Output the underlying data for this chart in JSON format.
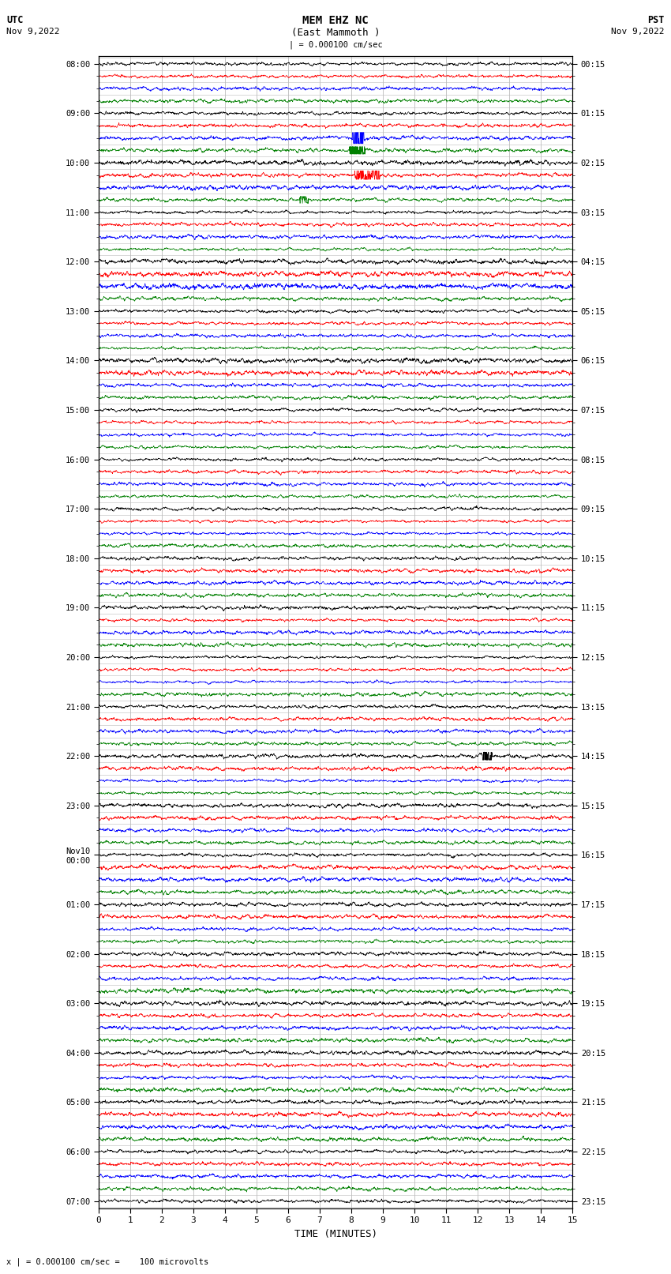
{
  "title_line1": "MEM EHZ NC",
  "title_line2": "(East Mammoth )",
  "scale_label": "| = 0.000100 cm/sec",
  "bottom_label": "x | = 0.000100 cm/sec =    100 microvolts",
  "xlabel": "TIME (MINUTES)",
  "utc_times": [
    "08:00",
    "",
    "",
    "",
    "09:00",
    "",
    "",
    "",
    "10:00",
    "",
    "",
    "",
    "11:00",
    "",
    "",
    "",
    "12:00",
    "",
    "",
    "",
    "13:00",
    "",
    "",
    "",
    "14:00",
    "",
    "",
    "",
    "15:00",
    "",
    "",
    "",
    "16:00",
    "",
    "",
    "",
    "17:00",
    "",
    "",
    "",
    "18:00",
    "",
    "",
    "",
    "19:00",
    "",
    "",
    "",
    "20:00",
    "",
    "",
    "",
    "21:00",
    "",
    "",
    "",
    "22:00",
    "",
    "",
    "",
    "23:00",
    "",
    "",
    "",
    "Nov10\n00:00",
    "",
    "",
    "",
    "01:00",
    "",
    "",
    "",
    "02:00",
    "",
    "",
    "",
    "03:00",
    "",
    "",
    "",
    "04:00",
    "",
    "",
    "",
    "05:00",
    "",
    "",
    "",
    "06:00",
    "",
    "",
    "",
    "07:00"
  ],
  "pst_times": [
    "00:15",
    "",
    "",
    "",
    "01:15",
    "",
    "",
    "",
    "02:15",
    "",
    "",
    "",
    "03:15",
    "",
    "",
    "",
    "04:15",
    "",
    "",
    "",
    "05:15",
    "",
    "",
    "",
    "06:15",
    "",
    "",
    "",
    "07:15",
    "",
    "",
    "",
    "08:15",
    "",
    "",
    "",
    "09:15",
    "",
    "",
    "",
    "10:15",
    "",
    "",
    "",
    "11:15",
    "",
    "",
    "",
    "12:15",
    "",
    "",
    "",
    "13:15",
    "",
    "",
    "",
    "14:15",
    "",
    "",
    "",
    "15:15",
    "",
    "",
    "",
    "16:15",
    "",
    "",
    "",
    "17:15",
    "",
    "",
    "",
    "18:15",
    "",
    "",
    "",
    "19:15",
    "",
    "",
    "",
    "20:15",
    "",
    "",
    "",
    "21:15",
    "",
    "",
    "",
    "22:15",
    "",
    "",
    "",
    "23:15"
  ],
  "trace_colors": [
    "black",
    "red",
    "blue",
    "green"
  ],
  "n_rows": 93,
  "x_min": 0,
  "x_max": 15,
  "x_ticks": [
    0,
    1,
    2,
    3,
    4,
    5,
    6,
    7,
    8,
    9,
    10,
    11,
    12,
    13,
    14,
    15
  ],
  "bg_color": "white",
  "grid_color": "#bbbbbb",
  "seed": 42
}
